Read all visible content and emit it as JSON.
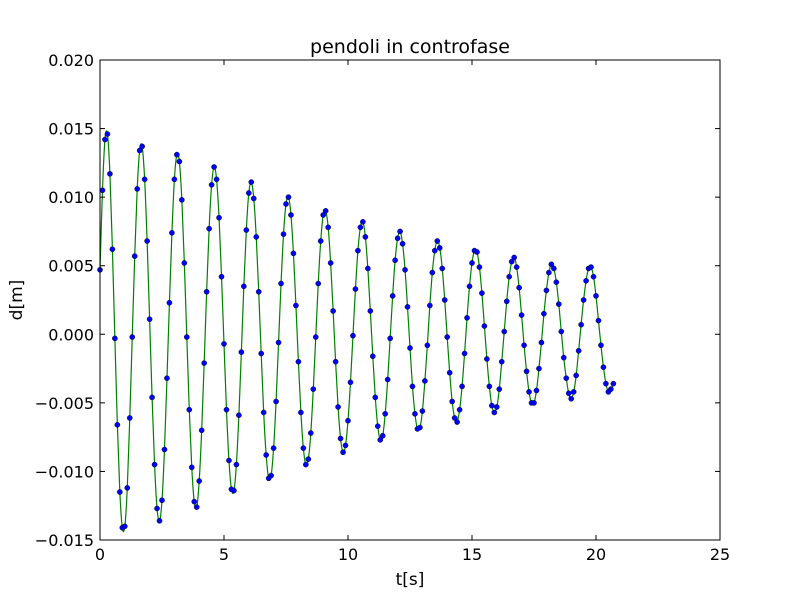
{
  "chart_data": {
    "type": "scatter",
    "title": "pendoli in controfase",
    "xlabel": "t[s]",
    "ylabel": "d[m]",
    "xlim": [
      0,
      25
    ],
    "ylim": [
      -0.015,
      0.02
    ],
    "xticks": [
      0,
      5,
      10,
      15,
      20,
      25
    ],
    "xtick_labels": [
      "0",
      "5",
      "10",
      "15",
      "20",
      "25"
    ],
    "yticks": [
      -0.015,
      -0.01,
      -0.005,
      0.0,
      0.005,
      0.01,
      0.015,
      0.02
    ],
    "ytick_labels": [
      "−0.015",
      "−0.010",
      "−0.005",
      "0.000",
      "0.005",
      "0.010",
      "0.015",
      "0.020"
    ],
    "grid": false,
    "legend": "none",
    "series": [
      {
        "kind": "points",
        "color": "#0000ff",
        "x_start": 0.0,
        "x_step": 0.1,
        "values": [
          0.0047,
          0.0105,
          0.0142,
          0.0146,
          0.0117,
          0.0062,
          -0.0003,
          -0.0066,
          -0.0115,
          -0.0141,
          -0.014,
          -0.0112,
          -0.0061,
          -0.0002,
          0.0057,
          0.0106,
          0.0134,
          0.0137,
          0.0113,
          0.0068,
          0.0011,
          -0.0046,
          -0.0095,
          -0.0127,
          -0.0136,
          -0.0121,
          -0.0084,
          -0.0032,
          0.0023,
          0.0074,
          0.0113,
          0.0131,
          0.0126,
          0.0098,
          0.0052,
          -0.0002,
          -0.0055,
          -0.0097,
          -0.0122,
          -0.0126,
          -0.0107,
          -0.007,
          -0.0021,
          0.0031,
          0.0077,
          0.0109,
          0.0122,
          0.0113,
          0.0085,
          0.0042,
          -0.0007,
          -0.0055,
          -0.0092,
          -0.0113,
          -0.0114,
          -0.0095,
          -0.0059,
          -0.0013,
          0.0035,
          0.0076,
          0.0103,
          0.0111,
          0.0099,
          0.0071,
          0.0031,
          -0.0014,
          -0.0057,
          -0.0088,
          -0.0105,
          -0.0103,
          -0.0083,
          -0.0049,
          -0.0006,
          0.0037,
          0.0073,
          0.0095,
          0.01,
          0.0087,
          0.0059,
          0.0021,
          -0.002,
          -0.0057,
          -0.0083,
          -0.0095,
          -0.0091,
          -0.0072,
          -0.004,
          -0.0002,
          0.0037,
          0.0068,
          0.0087,
          0.009,
          0.0078,
          0.0052,
          0.0017,
          -0.002,
          -0.0053,
          -0.0076,
          -0.0086,
          -0.0081,
          -0.0063,
          -0.0035,
          -0.0001,
          0.0033,
          0.0061,
          0.0078,
          0.0082,
          0.0071,
          0.0048,
          0.0017,
          -0.0016,
          -0.0046,
          -0.0067,
          -0.0077,
          -0.0074,
          -0.0058,
          -0.0033,
          -0.0003,
          0.0028,
          0.0054,
          0.007,
          0.0075,
          0.0066,
          0.0047,
          0.002,
          -0.001,
          -0.0038,
          -0.0058,
          -0.0069,
          -0.0068,
          -0.0056,
          -0.0034,
          -0.0008,
          0.0021,
          0.0045,
          0.0061,
          0.0068,
          0.0063,
          0.0048,
          0.0025,
          -0.0002,
          -0.0028,
          -0.0049,
          -0.0061,
          -0.0064,
          -0.0055,
          -0.0038,
          -0.0014,
          0.0012,
          0.0035,
          0.0052,
          0.0061,
          0.006,
          0.0049,
          0.003,
          0.0006,
          -0.0018,
          -0.0038,
          -0.0052,
          -0.0057,
          -0.0053,
          -0.004,
          -0.002,
          0.0002,
          0.0024,
          0.0042,
          0.0053,
          0.0056,
          0.0049,
          0.0034,
          0.0014,
          -0.0008,
          -0.0027,
          -0.0042,
          -0.005,
          -0.005,
          -0.0041,
          -0.0025,
          -0.0006,
          0.0015,
          0.0032,
          0.0045,
          0.0051,
          0.0048,
          0.0038,
          0.0022,
          0.0002,
          -0.0017,
          -0.0032,
          -0.0043,
          -0.0047,
          -0.0042,
          -0.003,
          -0.0012,
          0.0007,
          0.0025,
          0.0039,
          0.0048,
          0.0049,
          0.0042,
          0.0028,
          0.001,
          -0.0008,
          -0.0024,
          -0.0036,
          -0.0042,
          -0.004,
          -0.0036
        ]
      },
      {
        "kind": "line",
        "color": "#008000"
      }
    ]
  }
}
